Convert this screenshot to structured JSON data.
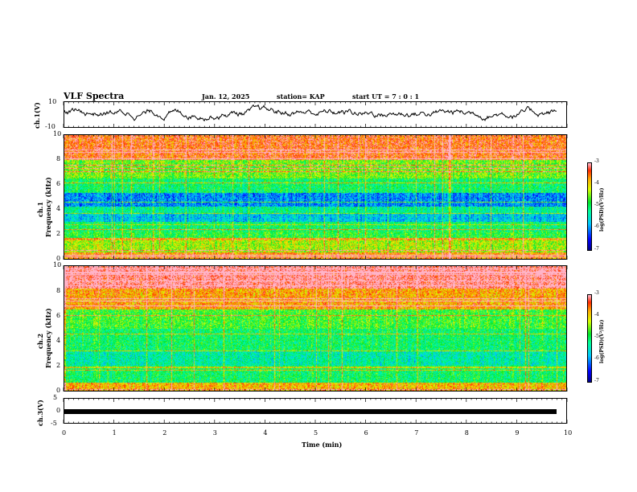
{
  "header": {
    "title": "VLF Spectra",
    "date": "Jan. 12, 2025",
    "station": "station= KAP",
    "start": "start UT =  7 : 0 : 1"
  },
  "chart_data": [
    {
      "type": "line",
      "title": "",
      "ylabel": "ch.1(V)",
      "ylim": [
        -10,
        10
      ],
      "yticks": [
        "10",
        "-10"
      ],
      "xlim": [
        0,
        10
      ],
      "note_color": "#000000"
    },
    {
      "type": "heatmap",
      "ylabel_top": "ch.1",
      "ylabel": "Frequency (kHz)",
      "ylim": [
        0,
        10
      ],
      "yticks": [
        "0",
        "2",
        "4",
        "6",
        "8",
        "10"
      ],
      "xlim": [
        0,
        10
      ],
      "colorbar": {
        "label": "log(PSD)(V²/Hz)",
        "ticks": [
          "-3",
          "-4",
          "-5",
          "-6",
          "-7"
        ],
        "range": [
          -7,
          -3
        ]
      },
      "bands_khz": [
        {
          "from": 0.0,
          "to": 0.5,
          "level": -3.6
        },
        {
          "from": 0.5,
          "to": 1.5,
          "level": -4.3
        },
        {
          "from": 1.5,
          "to": 2.2,
          "level": -4.8
        },
        {
          "from": 2.2,
          "to": 3.0,
          "level": -5.0
        },
        {
          "from": 3.0,
          "to": 3.6,
          "level": -5.7
        },
        {
          "from": 3.6,
          "to": 4.2,
          "level": -5.2
        },
        {
          "from": 4.2,
          "to": 5.3,
          "level": -6.0
        },
        {
          "from": 5.3,
          "to": 6.5,
          "level": -5.0
        },
        {
          "from": 6.5,
          "to": 8.0,
          "level": -4.5
        },
        {
          "from": 8.0,
          "to": 10.0,
          "level": -3.4
        }
      ]
    },
    {
      "type": "heatmap",
      "ylabel_top": "ch.2",
      "ylabel": "Frequency (kHz)",
      "ylim": [
        0,
        10
      ],
      "yticks": [
        "0",
        "2",
        "4",
        "6",
        "8",
        "10"
      ],
      "xlim": [
        0,
        10
      ],
      "colorbar": {
        "label": "log(PSD)(V²/Hz)",
        "ticks": [
          "-3",
          "-4",
          "-5",
          "-6",
          "-7"
        ],
        "range": [
          -7,
          -3
        ]
      },
      "bands_khz": [
        {
          "from": 0.0,
          "to": 0.6,
          "level": -3.8
        },
        {
          "from": 0.6,
          "to": 2.0,
          "level": -5.0
        },
        {
          "from": 2.0,
          "to": 3.2,
          "level": -5.3
        },
        {
          "from": 3.2,
          "to": 5.0,
          "level": -5.0
        },
        {
          "from": 5.0,
          "to": 6.5,
          "level": -4.7
        },
        {
          "from": 6.5,
          "to": 8.2,
          "level": -3.7
        },
        {
          "from": 8.2,
          "to": 10.0,
          "level": -3.0
        }
      ]
    },
    {
      "type": "line",
      "ylabel": "ch.3(V)",
      "ylim": [
        -5,
        5
      ],
      "yticks": [
        "5",
        "0",
        "-5"
      ],
      "xlim": [
        0,
        10
      ],
      "xlabel": "Time (min)",
      "xticks": [
        "0",
        "1",
        "2",
        "3",
        "4",
        "5",
        "6",
        "7",
        "8",
        "9",
        "10"
      ],
      "level_v": 0
    }
  ]
}
